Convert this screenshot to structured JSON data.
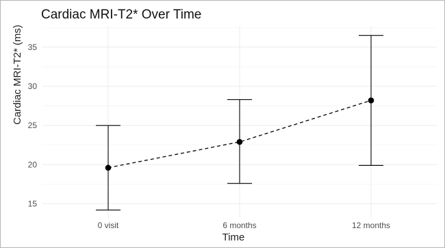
{
  "chart_data": {
    "type": "line",
    "title": "Cardiac MRI-T2* Over Time",
    "xlabel": "Time",
    "ylabel": "Cardiac MRI-T2* (ms)",
    "categories": [
      "0 visit",
      "6 months",
      "12 months"
    ],
    "series": [
      {
        "values": [
          19.6,
          22.9,
          28.2
        ],
        "lower": [
          14.2,
          17.6,
          19.9
        ],
        "upper": [
          25.0,
          28.3,
          36.5
        ],
        "line_style": "dashed",
        "color": "#000000"
      }
    ],
    "y_ticks": [
      15,
      20,
      25,
      30,
      35
    ],
    "ylim": [
      13.2,
      37.7
    ],
    "grid": true,
    "legend": "none"
  }
}
